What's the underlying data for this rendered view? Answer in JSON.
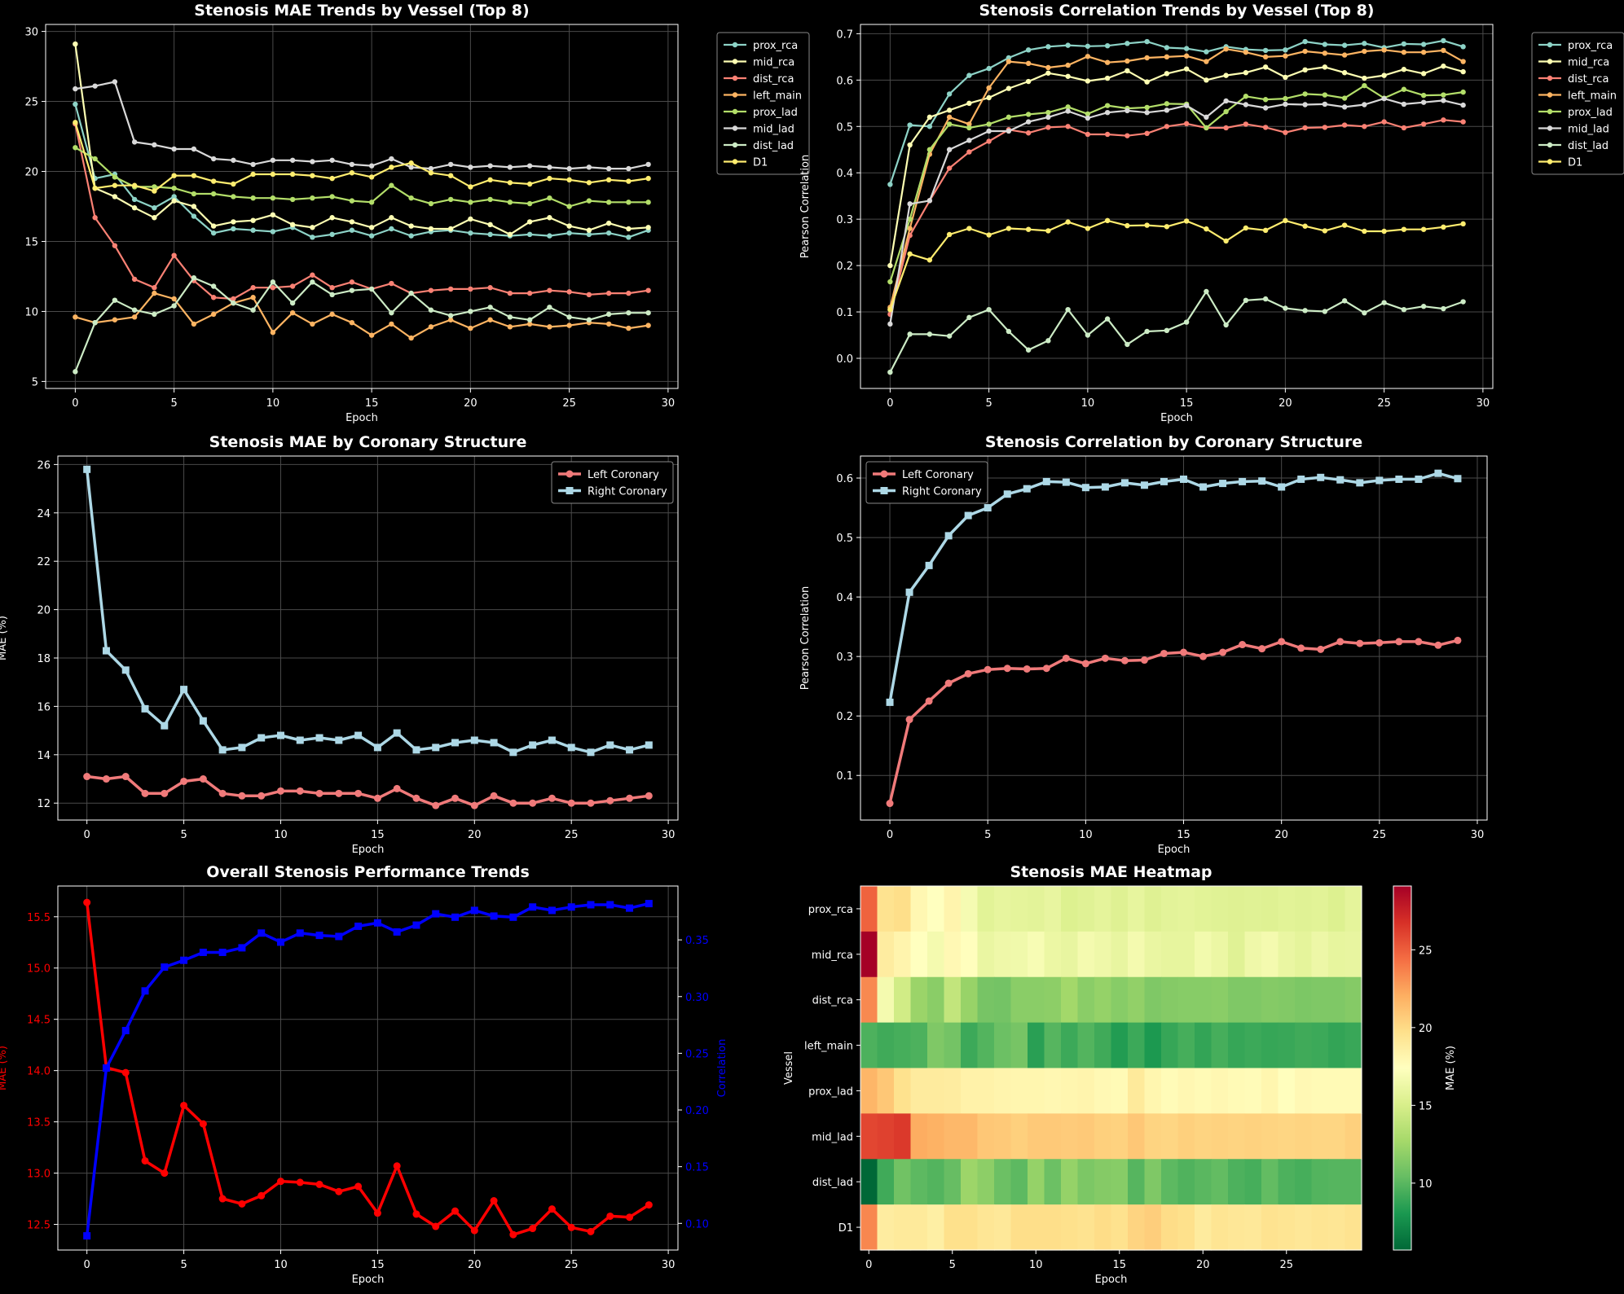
{
  "colors": {
    "background": "#000000",
    "text": "#ffffff",
    "grid": "#4a4a4a",
    "vessel_palette": [
      "#8dd3c7",
      "#feffb3",
      "#fa8174",
      "#fdb462",
      "#b3de69",
      "#d9d9d9",
      "#ccebc5",
      "#ffed6f"
    ],
    "left_coronary": "#f07a7a",
    "right_coronary": "#add8e6",
    "mae_overall": "#ff0000",
    "corr_overall": "#0000ff"
  },
  "chart_data": [
    {
      "id": "vessel-mae",
      "type": "line",
      "title": "Stenosis MAE Trends by Vessel (Top 8)",
      "xlabel": "Epoch",
      "ylabel": "MAE (%)",
      "xlim": [
        -1.5,
        30.5
      ],
      "ylim": [
        4.5,
        30.5
      ],
      "xticks": [
        0,
        5,
        10,
        15,
        20,
        25,
        30
      ],
      "yticks": [
        5,
        10,
        15,
        20,
        25,
        30
      ],
      "grid": true,
      "legend": "outside-right",
      "series": [
        {
          "name": "prox_rca",
          "values": [
            24.8,
            19.5,
            19.8,
            18.0,
            17.4,
            18.2,
            16.8,
            15.6,
            15.9,
            15.8,
            15.7,
            16.0,
            15.3,
            15.5,
            15.8,
            15.4,
            15.9,
            15.4,
            15.7,
            15.8,
            15.6,
            15.5,
            15.4,
            15.5,
            15.4,
            15.6,
            15.5,
            15.6,
            15.3,
            15.8
          ]
        },
        {
          "name": "mid_rca",
          "values": [
            29.1,
            18.8,
            18.2,
            17.4,
            16.7,
            17.9,
            17.5,
            16.1,
            16.4,
            16.5,
            16.9,
            16.2,
            16.0,
            16.7,
            16.4,
            16.0,
            16.7,
            16.1,
            15.9,
            15.9,
            16.6,
            16.2,
            15.5,
            16.4,
            16.7,
            16.1,
            15.8,
            16.3,
            15.9,
            16.0
          ]
        },
        {
          "name": "dist_rca",
          "values": [
            23.4,
            16.7,
            14.7,
            12.3,
            11.7,
            14.0,
            12.2,
            11.0,
            10.9,
            11.7,
            11.7,
            11.8,
            12.6,
            11.7,
            12.1,
            11.6,
            12.0,
            11.3,
            11.5,
            11.6,
            11.6,
            11.7,
            11.3,
            11.3,
            11.5,
            11.4,
            11.2,
            11.3,
            11.3,
            11.5
          ]
        },
        {
          "name": "left_main",
          "values": [
            9.6,
            9.2,
            9.4,
            9.6,
            11.3,
            10.9,
            9.1,
            9.8,
            10.6,
            11.0,
            8.5,
            9.9,
            9.1,
            9.8,
            9.2,
            8.3,
            9.1,
            8.1,
            8.9,
            9.4,
            8.8,
            9.4,
            8.9,
            9.1,
            8.9,
            9.0,
            9.2,
            9.1,
            8.8,
            9.0
          ]
        },
        {
          "name": "prox_lad",
          "values": [
            21.7,
            20.9,
            19.6,
            18.9,
            18.9,
            18.8,
            18.4,
            18.4,
            18.2,
            18.1,
            18.1,
            18.0,
            18.1,
            18.2,
            17.9,
            17.8,
            19.0,
            18.1,
            17.7,
            18.0,
            17.8,
            18.0,
            17.8,
            17.7,
            18.1,
            17.5,
            17.9,
            17.8,
            17.8,
            17.8
          ]
        },
        {
          "name": "mid_lad",
          "values": [
            25.9,
            26.1,
            26.4,
            22.1,
            21.9,
            21.6,
            21.6,
            20.9,
            20.8,
            20.5,
            20.8,
            20.8,
            20.7,
            20.8,
            20.5,
            20.4,
            20.9,
            20.3,
            20.2,
            20.5,
            20.3,
            20.4,
            20.3,
            20.4,
            20.3,
            20.2,
            20.3,
            20.2,
            20.2,
            20.5
          ]
        },
        {
          "name": "dist_lad",
          "values": [
            5.7,
            9.2,
            10.8,
            10.1,
            9.8,
            10.4,
            12.4,
            11.8,
            10.6,
            10.1,
            12.1,
            10.6,
            12.1,
            11.2,
            11.5,
            11.6,
            9.9,
            11.3,
            10.1,
            9.7,
            10.0,
            10.3,
            9.6,
            9.4,
            10.3,
            9.6,
            9.4,
            9.8,
            9.9,
            9.9
          ]
        },
        {
          "name": "D1",
          "values": [
            23.5,
            18.8,
            19.0,
            19.0,
            18.6,
            19.7,
            19.7,
            19.3,
            19.1,
            19.8,
            19.8,
            19.8,
            19.7,
            19.5,
            19.9,
            19.6,
            20.3,
            20.6,
            19.9,
            19.7,
            18.9,
            19.4,
            19.2,
            19.1,
            19.5,
            19.4,
            19.2,
            19.4,
            19.3,
            19.5
          ]
        }
      ]
    },
    {
      "id": "vessel-corr",
      "type": "line",
      "title": "Stenosis Correlation Trends by Vessel (Top 8)",
      "xlabel": "Epoch",
      "ylabel": "Pearson Correlation",
      "xlim": [
        -1.5,
        30.5
      ],
      "ylim": [
        -0.065,
        0.72
      ],
      "xticks": [
        0,
        5,
        10,
        15,
        20,
        25,
        30
      ],
      "yticks": [
        0.0,
        0.1,
        0.2,
        0.3,
        0.4,
        0.5,
        0.6,
        0.7
      ],
      "grid": true,
      "legend": "outside-right",
      "series": [
        {
          "name": "prox_rca",
          "values": [
            0.375,
            0.503,
            0.5,
            0.57,
            0.61,
            0.625,
            0.648,
            0.665,
            0.672,
            0.675,
            0.673,
            0.674,
            0.679,
            0.683,
            0.67,
            0.668,
            0.661,
            0.672,
            0.666,
            0.664,
            0.665,
            0.683,
            0.677,
            0.675,
            0.679,
            0.67,
            0.678,
            0.677,
            0.685,
            0.672
          ]
        },
        {
          "name": "mid_rca",
          "values": [
            0.2,
            0.46,
            0.52,
            0.535,
            0.55,
            0.562,
            0.582,
            0.597,
            0.615,
            0.608,
            0.598,
            0.604,
            0.62,
            0.596,
            0.614,
            0.624,
            0.6,
            0.61,
            0.616,
            0.628,
            0.606,
            0.622,
            0.628,
            0.616,
            0.604,
            0.61,
            0.623,
            0.614,
            0.63,
            0.618
          ]
        },
        {
          "name": "dist_rca",
          "values": [
            0.095,
            0.265,
            0.34,
            0.41,
            0.445,
            0.468,
            0.493,
            0.486,
            0.498,
            0.5,
            0.483,
            0.483,
            0.48,
            0.485,
            0.5,
            0.506,
            0.497,
            0.497,
            0.505,
            0.498,
            0.487,
            0.497,
            0.498,
            0.503,
            0.5,
            0.51,
            0.497,
            0.505,
            0.514,
            0.51
          ]
        },
        {
          "name": "left_main",
          "values": [
            0.11,
            0.28,
            0.44,
            0.52,
            0.505,
            0.583,
            0.64,
            0.636,
            0.627,
            0.632,
            0.651,
            0.638,
            0.641,
            0.648,
            0.65,
            0.652,
            0.64,
            0.667,
            0.66,
            0.65,
            0.652,
            0.662,
            0.658,
            0.654,
            0.662,
            0.665,
            0.66,
            0.66,
            0.664,
            0.64
          ]
        },
        {
          "name": "prox_lad",
          "values": [
            0.165,
            0.3,
            0.45,
            0.505,
            0.497,
            0.505,
            0.52,
            0.526,
            0.53,
            0.542,
            0.527,
            0.545,
            0.539,
            0.541,
            0.549,
            0.548,
            0.497,
            0.532,
            0.565,
            0.558,
            0.56,
            0.57,
            0.568,
            0.561,
            0.588,
            0.561,
            0.58,
            0.567,
            0.568,
            0.574
          ]
        },
        {
          "name": "mid_lad",
          "values": [
            0.074,
            0.333,
            0.34,
            0.45,
            0.47,
            0.49,
            0.49,
            0.51,
            0.52,
            0.533,
            0.518,
            0.53,
            0.534,
            0.53,
            0.535,
            0.545,
            0.52,
            0.555,
            0.547,
            0.54,
            0.548,
            0.547,
            0.548,
            0.542,
            0.547,
            0.56,
            0.548,
            0.552,
            0.556,
            0.546
          ]
        },
        {
          "name": "dist_lad",
          "values": [
            -0.03,
            0.052,
            0.052,
            0.048,
            0.088,
            0.105,
            0.058,
            0.018,
            0.038,
            0.105,
            0.05,
            0.085,
            0.03,
            0.058,
            0.06,
            0.078,
            0.144,
            0.072,
            0.125,
            0.128,
            0.108,
            0.103,
            0.101,
            0.124,
            0.098,
            0.12,
            0.105,
            0.112,
            0.107,
            0.122
          ]
        },
        {
          "name": "D1",
          "values": [
            0.105,
            0.225,
            0.212,
            0.267,
            0.28,
            0.266,
            0.28,
            0.278,
            0.275,
            0.294,
            0.28,
            0.297,
            0.286,
            0.287,
            0.284,
            0.296,
            0.279,
            0.253,
            0.281,
            0.276,
            0.297,
            0.285,
            0.275,
            0.287,
            0.274,
            0.274,
            0.278,
            0.278,
            0.283,
            0.29
          ]
        }
      ]
    },
    {
      "id": "coronary-mae",
      "type": "line",
      "title": "Stenosis MAE by Coronary Structure",
      "xlabel": "Epoch",
      "ylabel": "MAE (%)",
      "xlim": [
        -1.5,
        30.5
      ],
      "ylim": [
        11.3,
        26.35
      ],
      "xticks": [
        0,
        5,
        10,
        15,
        20,
        25,
        30
      ],
      "yticks": [
        12,
        14,
        16,
        18,
        20,
        22,
        24,
        26
      ],
      "grid": true,
      "legend": "upper-right",
      "series": [
        {
          "name": "Left Coronary",
          "marker": "circle",
          "values": [
            13.1,
            13.0,
            13.1,
            12.4,
            12.4,
            12.9,
            13.0,
            12.4,
            12.3,
            12.3,
            12.5,
            12.5,
            12.4,
            12.4,
            12.4,
            12.2,
            12.6,
            12.2,
            11.9,
            12.2,
            11.9,
            12.3,
            12.0,
            12.0,
            12.2,
            12.0,
            12.0,
            12.1,
            12.2,
            12.3
          ]
        },
        {
          "name": "Right Coronary",
          "marker": "square",
          "values": [
            25.8,
            18.3,
            17.5,
            15.9,
            15.2,
            16.7,
            15.4,
            14.2,
            14.3,
            14.7,
            14.8,
            14.6,
            14.7,
            14.6,
            14.8,
            14.3,
            14.9,
            14.2,
            14.3,
            14.5,
            14.6,
            14.5,
            14.1,
            14.4,
            14.6,
            14.3,
            14.1,
            14.4,
            14.2,
            14.4
          ]
        }
      ]
    },
    {
      "id": "coronary-corr",
      "type": "line",
      "title": "Stenosis Correlation by Coronary Structure",
      "xlabel": "Epoch",
      "ylabel": "Pearson Correlation",
      "xlim": [
        -1.5,
        30.5
      ],
      "ylim": [
        0.025,
        0.637
      ],
      "xticks": [
        0,
        5,
        10,
        15,
        20,
        25,
        30
      ],
      "yticks": [
        0.1,
        0.2,
        0.3,
        0.4,
        0.5,
        0.6
      ],
      "grid": true,
      "legend": "upper-left",
      "series": [
        {
          "name": "Left Coronary",
          "marker": "circle",
          "values": [
            0.053,
            0.194,
            0.225,
            0.255,
            0.271,
            0.278,
            0.28,
            0.279,
            0.28,
            0.297,
            0.288,
            0.297,
            0.293,
            0.294,
            0.305,
            0.307,
            0.3,
            0.307,
            0.32,
            0.313,
            0.325,
            0.314,
            0.312,
            0.325,
            0.322,
            0.323,
            0.325,
            0.325,
            0.319,
            0.327
          ]
        },
        {
          "name": "Right Coronary",
          "marker": "square",
          "values": [
            0.223,
            0.408,
            0.453,
            0.503,
            0.537,
            0.55,
            0.573,
            0.582,
            0.594,
            0.593,
            0.584,
            0.585,
            0.592,
            0.588,
            0.594,
            0.598,
            0.585,
            0.591,
            0.594,
            0.595,
            0.585,
            0.598,
            0.601,
            0.597,
            0.592,
            0.596,
            0.598,
            0.598,
            0.608,
            0.599
          ]
        }
      ]
    },
    {
      "id": "overall",
      "type": "line",
      "title": "Overall Stenosis Performance Trends",
      "xlabel": "Epoch",
      "ylabel": "MAE (%)",
      "ylabel_right": "Correlation",
      "xlim": [
        -1.5,
        30.5
      ],
      "ylim": [
        12.25,
        15.8
      ],
      "ylim_right": [
        0.0765,
        0.3975
      ],
      "xticks": [
        0,
        5,
        10,
        15,
        20,
        25,
        30
      ],
      "yticks": [
        12.5,
        13.0,
        13.5,
        14.0,
        14.5,
        15.0,
        15.5
      ],
      "yticks_right": [
        0.1,
        0.15,
        0.2,
        0.25,
        0.3,
        0.35
      ],
      "grid": true,
      "series": [
        {
          "name": "MAE",
          "axis": "left",
          "marker": "circle",
          "values": [
            15.64,
            14.03,
            13.98,
            13.12,
            13.0,
            13.66,
            13.48,
            12.75,
            12.7,
            12.78,
            12.92,
            12.91,
            12.89,
            12.82,
            12.87,
            12.61,
            13.07,
            12.6,
            12.48,
            12.63,
            12.44,
            12.73,
            12.4,
            12.46,
            12.65,
            12.47,
            12.43,
            12.58,
            12.57,
            12.69
          ]
        },
        {
          "name": "Correlation",
          "axis": "right",
          "marker": "square",
          "values": [
            0.089,
            0.237,
            0.27,
            0.305,
            0.326,
            0.332,
            0.339,
            0.339,
            0.343,
            0.356,
            0.348,
            0.356,
            0.354,
            0.353,
            0.362,
            0.365,
            0.357,
            0.363,
            0.373,
            0.37,
            0.376,
            0.371,
            0.37,
            0.379,
            0.376,
            0.379,
            0.381,
            0.381,
            0.378,
            0.382
          ]
        }
      ]
    },
    {
      "id": "heatmap",
      "type": "heatmap",
      "title": "Stenosis MAE Heatmap",
      "xlabel": "Epoch",
      "ylabel": "Vessel",
      "colorbar_label": "MAE (%)",
      "color_range": [
        5.7,
        29.1
      ],
      "colorbar_ticks": [
        10,
        15,
        20,
        25
      ],
      "xticks": [
        0,
        5,
        10,
        15,
        20,
        25
      ],
      "rows": [
        "prox_rca",
        "mid_rca",
        "dist_rca",
        "left_main",
        "prox_lad",
        "mid_lad",
        "dist_lad",
        "D1"
      ]
    }
  ]
}
